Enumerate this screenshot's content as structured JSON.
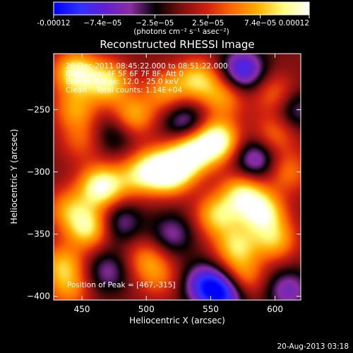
{
  "chart_data": {
    "type": "heatmap",
    "title": "Reconstructed RHESSI Image",
    "xlabel": "Heliocentric X (arcsec)",
    "ylabel": "Heliocentric Y (arcsec)",
    "xlim": [
      428,
      620
    ],
    "ylim": [
      -403,
      -205
    ],
    "x_ticks": [
      450,
      500,
      550,
      600
    ],
    "y_ticks": [
      -250,
      -300,
      -350,
      -400
    ],
    "colorbar": {
      "min": -0.00012,
      "max": 0.00012,
      "tick_values": [
        -0.00012,
        -7.4e-05,
        -2.5e-05,
        2.5e-05,
        7.4e-05,
        0.00012
      ],
      "tick_labels": [
        "-0.00012",
        "−7.4e−05",
        "−2.5e−05",
        "2.5e−05",
        "7.4e−05",
        "0.00012"
      ],
      "unit_label": "(photons cm⁻² s⁻¹ asec⁻²)",
      "colormap": [
        "#0000ff",
        "#3030ff",
        "#6020d0",
        "#8a2ea0",
        "#000000",
        "#7a1010",
        "#d02010",
        "#ff6a00",
        "#ffb000",
        "#ffff80",
        "#ffffff"
      ]
    },
    "annotations": [
      "26-Dec-2011 08:45:22.000 to 08:51:22.000",
      "Detectors: 4F 5F 6F 7F 8F, Att 0",
      "Energy Range: 12.0 - 25.0 keV",
      "Clean    Total counts: 1.14E+04"
    ],
    "peak_label": "Position of Peak = [467,-315]",
    "peak": [
      467,
      -315
    ],
    "blobs": [
      {
        "x": 445,
        "y": -220,
        "v": 0.0001
      },
      {
        "x": 470,
        "y": -228,
        "v": 9e-05
      },
      {
        "x": 515,
        "y": -235,
        "v": 6e-05
      },
      {
        "x": 540,
        "y": -226,
        "v": 8e-05
      },
      {
        "x": 575,
        "y": -218,
        "v": -9e-05
      },
      {
        "x": 600,
        "y": -238,
        "v": 5e-05
      },
      {
        "x": 560,
        "y": -240,
        "v": 6e-05
      },
      {
        "x": 490,
        "y": -255,
        "v": 7e-05
      },
      {
        "x": 530,
        "y": -260,
        "v": -6e-05
      },
      {
        "x": 555,
        "y": -275,
        "v": 0.00012
      },
      {
        "x": 535,
        "y": -285,
        "v": 0.00011
      },
      {
        "x": 520,
        "y": -300,
        "v": 0.00011
      },
      {
        "x": 505,
        "y": -298,
        "v": 8e-05
      },
      {
        "x": 475,
        "y": -270,
        "v": -4e-05
      },
      {
        "x": 445,
        "y": -250,
        "v": 6e-05
      },
      {
        "x": 450,
        "y": -275,
        "v": 4e-05
      },
      {
        "x": 465,
        "y": -312,
        "v": 0.000115
      },
      {
        "x": 490,
        "y": -305,
        "v": 5e-05
      },
      {
        "x": 600,
        "y": -270,
        "v": 5e-05
      },
      {
        "x": 585,
        "y": -290,
        "v": -7e-05
      },
      {
        "x": 610,
        "y": -300,
        "v": 5e-05
      },
      {
        "x": 575,
        "y": -318,
        "v": 9e-05
      },
      {
        "x": 590,
        "y": -333,
        "v": 0.0001
      },
      {
        "x": 555,
        "y": -335,
        "v": 8e-05
      },
      {
        "x": 600,
        "y": -355,
        "v": 7e-05
      },
      {
        "x": 570,
        "y": -360,
        "v": 8e-05
      },
      {
        "x": 575,
        "y": -385,
        "v": 6e-05
      },
      {
        "x": 545,
        "y": -390,
        "v": -8e-05
      },
      {
        "x": 560,
        "y": -398,
        "v": -0.0001
      },
      {
        "x": 520,
        "y": -350,
        "v": -5e-05
      },
      {
        "x": 500,
        "y": -370,
        "v": 5e-05
      },
      {
        "x": 510,
        "y": -385,
        "v": 4e-05
      },
      {
        "x": 455,
        "y": -345,
        "v": 9e-05
      },
      {
        "x": 440,
        "y": -330,
        "v": 6e-05
      },
      {
        "x": 435,
        "y": -375,
        "v": 7e-05
      },
      {
        "x": 470,
        "y": -380,
        "v": -5e-05
      },
      {
        "x": 440,
        "y": -395,
        "v": 5e-05
      },
      {
        "x": 480,
        "y": -340,
        "v": -5e-05
      },
      {
        "x": 610,
        "y": -395,
        "v": -6e-05
      },
      {
        "x": 615,
        "y": -250,
        "v": -5e-05
      }
    ]
  },
  "footer_date": "20-Aug-2013 03:18"
}
